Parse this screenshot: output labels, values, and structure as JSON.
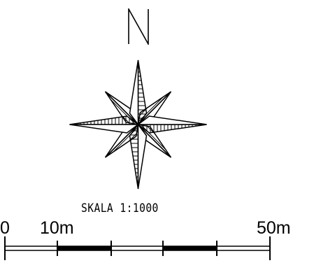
{
  "map": {
    "north_letter": "N",
    "compass_icon": "compass-rose-icon",
    "scale_caption": "SKALA 1:1000",
    "scale_bar": {
      "labels": [
        "0",
        "10m",
        "50m"
      ],
      "segments_m": [
        0,
        10,
        20,
        30,
        40,
        50
      ],
      "fill_pattern": [
        "white",
        "black",
        "white",
        "black",
        "white"
      ]
    },
    "colors": {
      "ink": "#000000",
      "paper": "#ffffff"
    }
  }
}
